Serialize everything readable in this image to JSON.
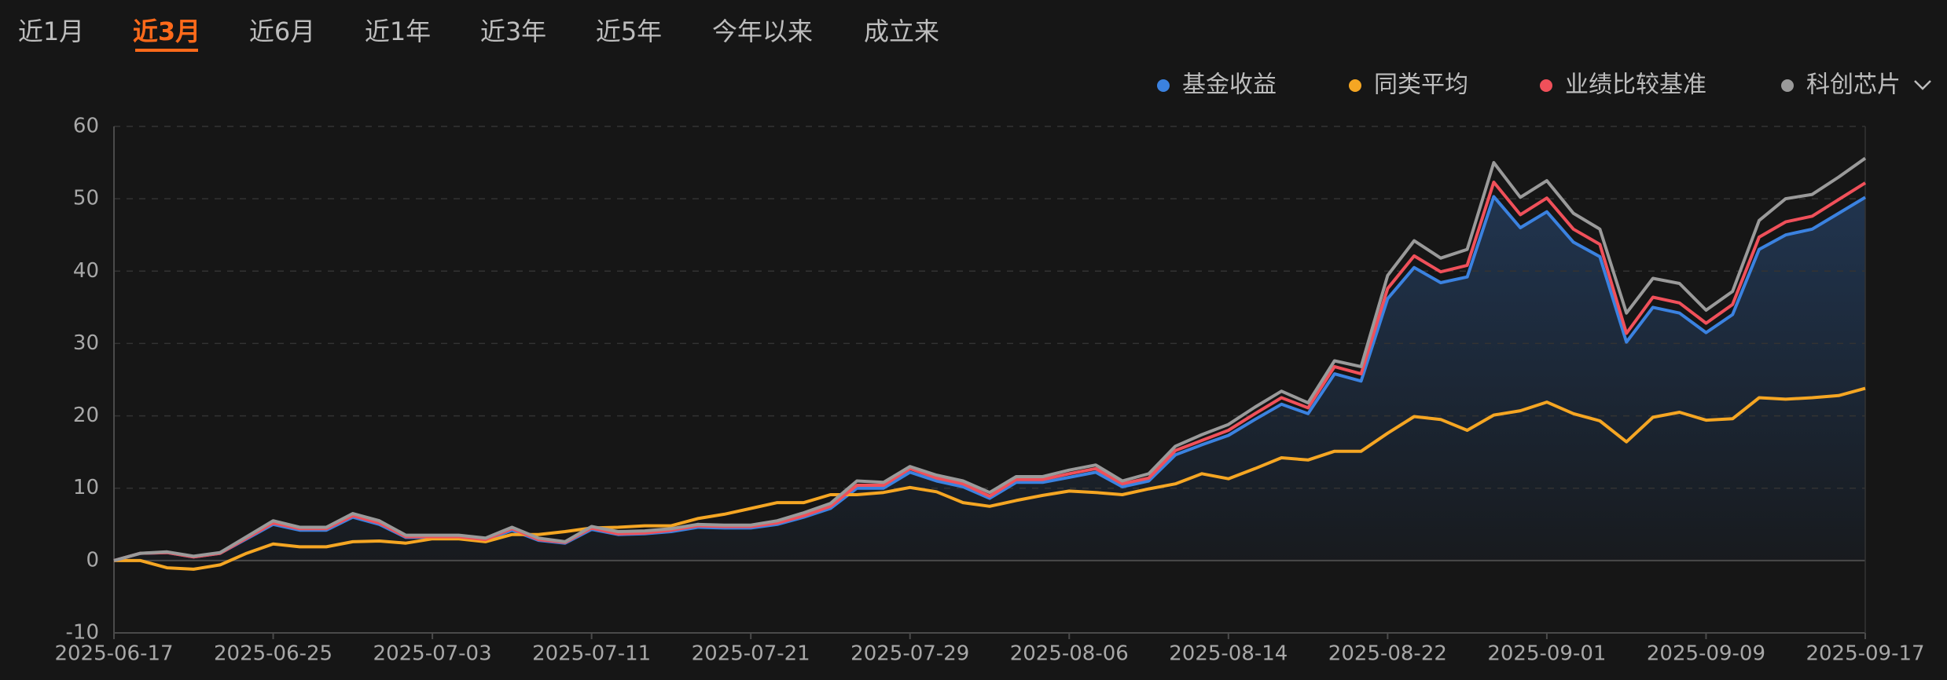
{
  "tabs": {
    "items": [
      "近1月",
      "近3月",
      "近6月",
      "近1年",
      "近3年",
      "近5年",
      "今年以来",
      "成立来"
    ],
    "selected": 1
  },
  "chart_data": {
    "type": "line",
    "categories": [
      "2025-06-17",
      null,
      null,
      null,
      null,
      null,
      "2025-06-25",
      null,
      null,
      null,
      null,
      null,
      "2025-07-03",
      null,
      null,
      null,
      null,
      null,
      "2025-07-11",
      null,
      null,
      null,
      null,
      null,
      "2025-07-21",
      null,
      null,
      null,
      null,
      null,
      "2025-07-29",
      null,
      null,
      null,
      null,
      null,
      "2025-08-06",
      null,
      null,
      null,
      null,
      null,
      "2025-08-14",
      null,
      null,
      null,
      null,
      null,
      "2025-08-22",
      null,
      null,
      null,
      null,
      null,
      "2025-09-01",
      null,
      null,
      null,
      null,
      null,
      "2025-09-09",
      null,
      null,
      null,
      null,
      null,
      "2025-09-17"
    ],
    "series": [
      {
        "name": "基金收益",
        "color": "#3b82e0",
        "area": true,
        "values": [
          0,
          1,
          1.1,
          0.5,
          1,
          3,
          5,
          4.2,
          4.2,
          6,
          5,
          3.2,
          3.2,
          3.2,
          2.8,
          4.2,
          2.8,
          2.4,
          4.3,
          3.6,
          3.7,
          4,
          4.6,
          4.5,
          4.5,
          5,
          6,
          7.2,
          10,
          10,
          12.2,
          11,
          10.2,
          8.6,
          10.8,
          10.8,
          11.5,
          12.2,
          10.2,
          11,
          14.6,
          16,
          17.3,
          19.5,
          21.6,
          20.3,
          25.8,
          24.8,
          36.2,
          40.5,
          38.4,
          39.2,
          50.3,
          46,
          48.2,
          44,
          42,
          30.2,
          35,
          34.2,
          31.5,
          34,
          43,
          45,
          45.8,
          48,
          50.2
        ]
      },
      {
        "name": "同类平均",
        "color": "#f5a623",
        "values": [
          0,
          0,
          -1,
          -1.2,
          -0.6,
          1,
          2.3,
          1.9,
          1.9,
          2.6,
          2.7,
          2.4,
          3,
          3,
          2.6,
          3.6,
          3.6,
          4,
          4.5,
          4.6,
          4.8,
          4.8,
          5.8,
          6.4,
          7.2,
          8,
          8,
          9.1,
          9.1,
          9.4,
          10.1,
          9.5,
          8,
          7.5,
          8.3,
          9,
          9.6,
          9.4,
          9.1,
          9.9,
          10.6,
          12,
          11.3,
          12.7,
          14.2,
          13.9,
          15.1,
          15.1,
          17.6,
          19.9,
          19.5,
          18,
          20.1,
          20.7,
          21.9,
          20.3,
          19.3,
          16.4,
          19.8,
          20.5,
          19.4,
          19.6,
          22.5,
          22.3,
          22.5,
          22.8,
          23.8
        ]
      },
      {
        "name": "业绩比较基准",
        "color": "#f0505a",
        "values": [
          0,
          1,
          1.1,
          0.5,
          1,
          3.1,
          5.2,
          4.4,
          4.4,
          6.2,
          5.2,
          3.3,
          3.3,
          3.3,
          2.9,
          4.4,
          2.9,
          2.5,
          4.5,
          3.7,
          3.8,
          4.2,
          4.8,
          4.7,
          4.7,
          5.2,
          6.2,
          7.5,
          10.4,
          10.4,
          12.7,
          11.4,
          10.6,
          8.9,
          11.2,
          11.2,
          12,
          12.7,
          10.6,
          11.4,
          15.2,
          16.6,
          18,
          20.3,
          22.5,
          21.1,
          26.8,
          25.8,
          37.6,
          42.1,
          39.9,
          40.8,
          52.3,
          47.8,
          50.1,
          45.8,
          43.7,
          31.4,
          36.4,
          35.6,
          32.8,
          35.4,
          44.7,
          46.8,
          47.6,
          49.9,
          52.2
        ]
      },
      {
        "name": "科创芯片",
        "color": "#9a9a9a",
        "values": [
          0,
          1,
          1.2,
          0.6,
          1.1,
          3.3,
          5.5,
          4.6,
          4.6,
          6.5,
          5.5,
          3.5,
          3.5,
          3.5,
          3.1,
          4.6,
          3.1,
          2.6,
          4.7,
          4,
          4.1,
          4.4,
          5,
          4.9,
          4.9,
          5.5,
          6.6,
          7.9,
          11,
          10.8,
          13,
          11.8,
          11,
          9.4,
          11.6,
          11.6,
          12.5,
          13.2,
          11,
          12,
          15.8,
          17.4,
          18.8,
          21.2,
          23.4,
          21.8,
          27.6,
          26.8,
          39.4,
          44.2,
          41.8,
          43,
          55,
          50.2,
          52.5,
          48,
          45.8,
          34.2,
          39,
          38.3,
          34.6,
          37.2,
          47,
          50,
          50.6,
          53,
          55.6
        ]
      }
    ],
    "ylim": [
      -10,
      60
    ],
    "yticks": [
      -10,
      0,
      10,
      20,
      30,
      40,
      50,
      60
    ],
    "grid": true,
    "legend": "top-right"
  }
}
